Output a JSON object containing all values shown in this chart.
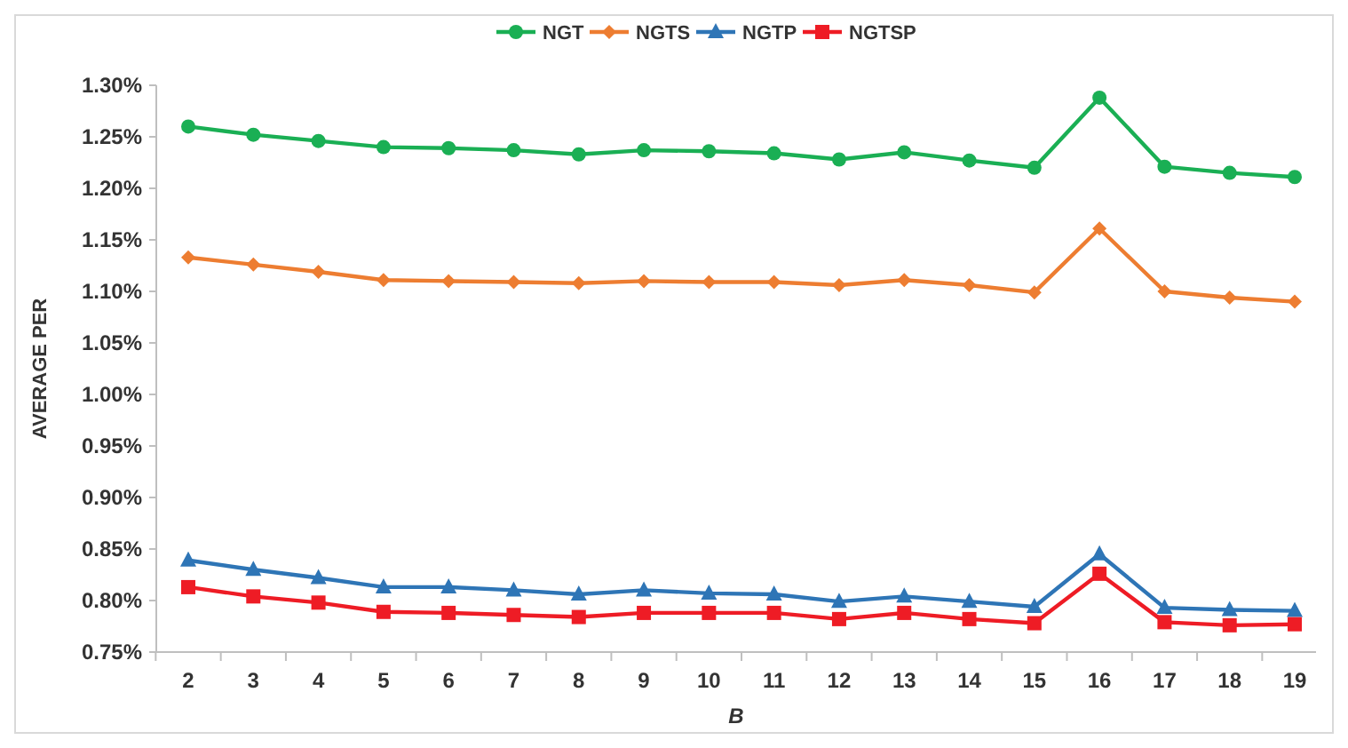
{
  "chart_data": {
    "type": "line",
    "xlabel": "B",
    "ylabel": "AVERAGE PER",
    "legend": "top",
    "categories": [
      "2",
      "3",
      "4",
      "5",
      "6",
      "7",
      "8",
      "9",
      "10",
      "11",
      "12",
      "13",
      "14",
      "15",
      "16",
      "17",
      "18",
      "19"
    ],
    "ylim": [
      0.75,
      1.3
    ],
    "yticks": [
      {
        "value": 0.75,
        "label": "0.75%"
      },
      {
        "value": 0.8,
        "label": "0.80%"
      },
      {
        "value": 0.85,
        "label": "0.85%"
      },
      {
        "value": 0.9,
        "label": "0.90%"
      },
      {
        "value": 0.95,
        "label": "0.95%"
      },
      {
        "value": 1.0,
        "label": "1.00%"
      },
      {
        "value": 1.05,
        "label": "1.05%"
      },
      {
        "value": 1.1,
        "label": "1.10%"
      },
      {
        "value": 1.15,
        "label": "1.15%"
      },
      {
        "value": 1.2,
        "label": "1.20%"
      },
      {
        "value": 1.25,
        "label": "1.25%"
      },
      {
        "value": 1.3,
        "label": "1.30%"
      }
    ],
    "series": [
      {
        "name": "NGT",
        "color": "#1aaf54",
        "marker": "circle",
        "values": [
          1.26,
          1.252,
          1.246,
          1.24,
          1.239,
          1.237,
          1.233,
          1.237,
          1.236,
          1.234,
          1.228,
          1.235,
          1.227,
          1.22,
          1.288,
          1.221,
          1.215,
          1.211
        ]
      },
      {
        "name": "NGTS",
        "color": "#ed7d31",
        "marker": "diamond",
        "values": [
          1.133,
          1.126,
          1.119,
          1.111,
          1.11,
          1.109,
          1.108,
          1.11,
          1.109,
          1.109,
          1.106,
          1.111,
          1.106,
          1.099,
          1.161,
          1.1,
          1.094,
          1.09
        ]
      },
      {
        "name": "NGTP",
        "color": "#2e75b6",
        "marker": "triangle",
        "values": [
          0.839,
          0.83,
          0.822,
          0.813,
          0.813,
          0.81,
          0.806,
          0.81,
          0.807,
          0.806,
          0.799,
          0.804,
          0.799,
          0.794,
          0.845,
          0.793,
          0.791,
          0.79
        ]
      },
      {
        "name": "NGTSP",
        "color": "#ee1c25",
        "marker": "square",
        "values": [
          0.813,
          0.804,
          0.798,
          0.789,
          0.788,
          0.786,
          0.784,
          0.788,
          0.788,
          0.788,
          0.782,
          0.788,
          0.782,
          0.778,
          0.826,
          0.779,
          0.776,
          0.777
        ]
      }
    ]
  }
}
